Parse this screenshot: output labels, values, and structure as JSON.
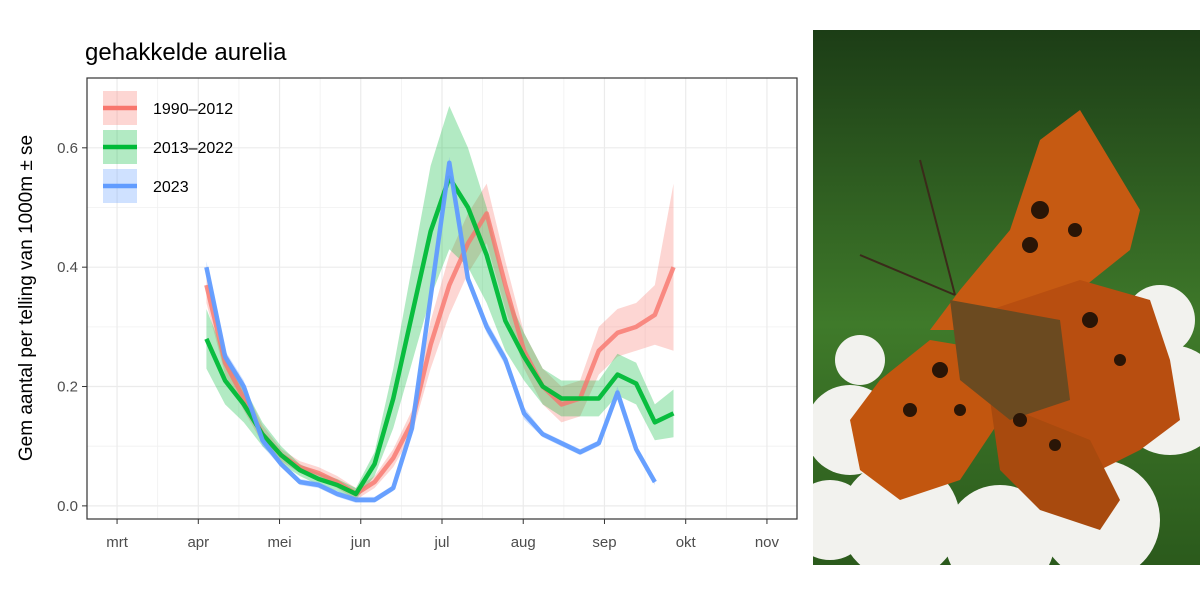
{
  "chart_data": {
    "type": "line",
    "title": "gehakkelde aurelia",
    "y_label": "Gem aantal per telling van 1000m ± se",
    "x": [
      4.1,
      4.33,
      4.56,
      4.79,
      5.02,
      5.25,
      5.48,
      5.71,
      5.94,
      6.17,
      6.4,
      6.63,
      6.86,
      7.09,
      7.32,
      7.55,
      7.78,
      8.01,
      8.24,
      8.47,
      8.7,
      8.93,
      9.16,
      9.39,
      9.62,
      9.85
    ],
    "series": [
      {
        "name": "1990–2012",
        "color": "#f8766d",
        "values": [
          0.37,
          0.24,
          0.18,
          0.12,
          0.085,
          0.065,
          0.055,
          0.04,
          0.02,
          0.04,
          0.08,
          0.14,
          0.27,
          0.37,
          0.44,
          0.49,
          0.37,
          0.26,
          0.2,
          0.17,
          0.18,
          0.26,
          0.29,
          0.3,
          0.32,
          0.4
        ],
        "se": [
          0.03,
          0.02,
          0.02,
          0.015,
          0.01,
          0.01,
          0.01,
          0.01,
          0.01,
          0.01,
          0.015,
          0.02,
          0.04,
          0.05,
          0.05,
          0.05,
          0.04,
          0.03,
          0.03,
          0.03,
          0.03,
          0.04,
          0.04,
          0.04,
          0.05,
          0.14
        ]
      },
      {
        "name": "2013–2022",
        "color": "#00ba38",
        "values": [
          0.28,
          0.21,
          0.17,
          0.12,
          0.085,
          0.06,
          0.045,
          0.035,
          0.02,
          0.07,
          0.18,
          0.32,
          0.46,
          0.55,
          0.5,
          0.42,
          0.31,
          0.25,
          0.2,
          0.18,
          0.18,
          0.18,
          0.22,
          0.205,
          0.14,
          0.155
        ],
        "se": [
          0.05,
          0.04,
          0.03,
          0.02,
          0.015,
          0.01,
          0.01,
          0.01,
          0.01,
          0.02,
          0.05,
          0.08,
          0.11,
          0.12,
          0.1,
          0.08,
          0.05,
          0.04,
          0.03,
          0.03,
          0.03,
          0.03,
          0.035,
          0.035,
          0.03,
          0.04
        ]
      },
      {
        "name": "2023",
        "color": "#619cff",
        "values": [
          0.4,
          0.25,
          0.2,
          0.11,
          0.07,
          0.04,
          0.035,
          0.02,
          0.01,
          0.01,
          0.03,
          0.13,
          0.35,
          0.575,
          0.38,
          0.3,
          0.245,
          0.155,
          0.12,
          0.105,
          0.09,
          0.105,
          0.19,
          0.095,
          0.04,
          null
        ],
        "se": [
          0.01,
          0.01,
          0.01,
          0.01,
          0.005,
          0.005,
          0.005,
          0.005,
          0.005,
          0.005,
          0.005,
          0.01,
          0.01,
          0.01,
          0.01,
          0.01,
          0.01,
          0.01,
          0.005,
          0.005,
          0.005,
          0.005,
          0.01,
          0.005,
          0.005,
          null
        ]
      }
    ],
    "xlim": [
      2.63,
      11.37
    ],
    "xticks": [
      {
        "value": 3,
        "label": "mrt"
      },
      {
        "value": 4,
        "label": "apr"
      },
      {
        "value": 5,
        "label": "mei"
      },
      {
        "value": 6,
        "label": "jun"
      },
      {
        "value": 7,
        "label": "jul"
      },
      {
        "value": 8,
        "label": "aug"
      },
      {
        "value": 9,
        "label": "sep"
      },
      {
        "value": 10,
        "label": "okt"
      },
      {
        "value": 11,
        "label": "nov"
      }
    ],
    "ylim": [
      -0.022,
      0.717
    ],
    "yticks": [
      {
        "value": 0,
        "label": "0.0"
      },
      0.2,
      0.4,
      0.6
    ],
    "grid": true,
    "legend": "top-left"
  }
}
